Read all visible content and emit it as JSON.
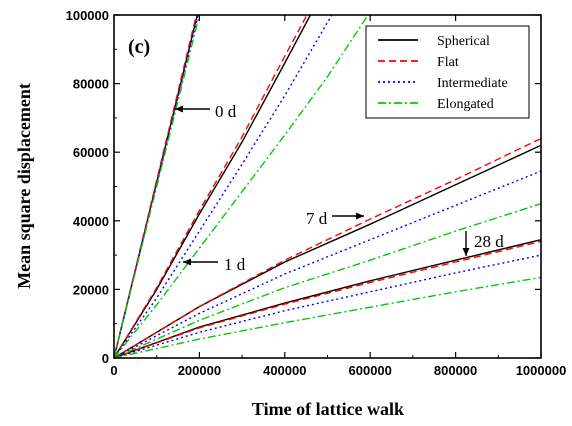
{
  "chart_data": {
    "type": "line",
    "panel_label": "(c)",
    "xlabel": "Time of lattice walk",
    "ylabel": "Mean square displacement",
    "xlim": [
      0,
      1000000
    ],
    "ylim": [
      0,
      100000
    ],
    "xticks": [
      0,
      200000,
      400000,
      600000,
      800000,
      1000000
    ],
    "xtick_labels": [
      "0",
      "200000",
      "400000",
      "600000",
      "800000",
      "1000000"
    ],
    "yticks": [
      0,
      20000,
      40000,
      60000,
      80000,
      100000
    ],
    "ytick_labels": [
      "0",
      "20000",
      "40000",
      "60000",
      "80000",
      "100000"
    ],
    "grid": false,
    "legend_position": "top-right",
    "legend": [
      {
        "label": "Spherical",
        "color": "#000000",
        "dash": "solid"
      },
      {
        "label": "Flat",
        "color": "#ff0000",
        "dash": "dashed"
      },
      {
        "label": "Intermediate",
        "color": "#0000ff",
        "dash": "dotted"
      },
      {
        "label": "Elongated",
        "color": "#00cc00",
        "dash": "dashdot"
      }
    ],
    "groups": [
      {
        "label": "0 d",
        "series": [
          {
            "shape": "Spherical",
            "x": [
              0,
              195000
            ],
            "y": [
              0,
              100000
            ]
          },
          {
            "shape": "Flat",
            "x": [
              0,
              193000
            ],
            "y": [
              0,
              100000
            ]
          },
          {
            "shape": "Intermediate",
            "x": [
              0,
              197000
            ],
            "y": [
              0,
              100000
            ]
          },
          {
            "shape": "Elongated",
            "x": [
              0,
              200000
            ],
            "y": [
              0,
              100000
            ]
          }
        ]
      },
      {
        "label": "1 d",
        "series": [
          {
            "shape": "Spherical",
            "x": [
              0,
              100000,
              200000,
              300000,
              400000,
              460000
            ],
            "y": [
              0,
              20000,
              42000,
              63000,
              86000,
              100000
            ]
          },
          {
            "shape": "Flat",
            "x": [
              0,
              100000,
              200000,
              300000,
              400000,
              452000
            ],
            "y": [
              0,
              20500,
              43000,
              64500,
              88000,
              100000
            ]
          },
          {
            "shape": "Intermediate",
            "x": [
              0,
              100000,
              200000,
              300000,
              400000,
              510000
            ],
            "y": [
              0,
              17500,
              37000,
              56500,
              76500,
              100000
            ]
          },
          {
            "shape": "Elongated",
            "x": [
              0,
              100000,
              200000,
              300000,
              400000,
              500000,
              595000
            ],
            "y": [
              0,
              15500,
              32000,
              48500,
              65000,
              82000,
              100000
            ]
          }
        ]
      },
      {
        "label": "7 d",
        "series": [
          {
            "shape": "Spherical",
            "x": [
              0,
              200000,
              400000,
              600000,
              800000,
              1000000
            ],
            "y": [
              0,
              15000,
              28000,
              39000,
              50500,
              62000
            ]
          },
          {
            "shape": "Flat",
            "x": [
              0,
              200000,
              400000,
              600000,
              800000,
              1000000
            ],
            "y": [
              0,
              15000,
              28500,
              40500,
              52000,
              64000
            ]
          },
          {
            "shape": "Intermediate",
            "x": [
              0,
              200000,
              400000,
              600000,
              800000,
              1000000
            ],
            "y": [
              0,
              13000,
              24500,
              34500,
              44500,
              54500
            ]
          },
          {
            "shape": "Elongated",
            "x": [
              0,
              200000,
              400000,
              600000,
              800000,
              1000000
            ],
            "y": [
              0,
              11000,
              20500,
              28500,
              37000,
              45000
            ]
          }
        ]
      },
      {
        "label": "28 d",
        "series": [
          {
            "shape": "Spherical",
            "x": [
              0,
              200000,
              400000,
              600000,
              800000,
              1000000
            ],
            "y": [
              0,
              9000,
              16000,
              22500,
              28500,
              34500
            ]
          },
          {
            "shape": "Flat",
            "x": [
              0,
              200000,
              400000,
              600000,
              800000,
              1000000
            ],
            "y": [
              0,
              8800,
              15700,
              22000,
              28000,
              34000
            ]
          },
          {
            "shape": "Intermediate",
            "x": [
              0,
              200000,
              400000,
              600000,
              800000,
              1000000
            ],
            "y": [
              0,
              7500,
              13800,
              19300,
              24800,
              30000
            ]
          },
          {
            "shape": "Elongated",
            "x": [
              0,
              200000,
              400000,
              600000,
              800000,
              1000000
            ],
            "y": [
              0,
              5500,
              10300,
              14800,
              19300,
              23500
            ]
          }
        ]
      }
    ],
    "annotations": [
      {
        "text": "0 d",
        "x": 240000,
        "y": 86000
      },
      {
        "text": "1 d",
        "x": 255000,
        "y": 27000
      },
      {
        "text": "7 d",
        "x": 480000,
        "y": 40500
      },
      {
        "text": "28 d",
        "x": 880000,
        "y": 35500
      }
    ]
  }
}
